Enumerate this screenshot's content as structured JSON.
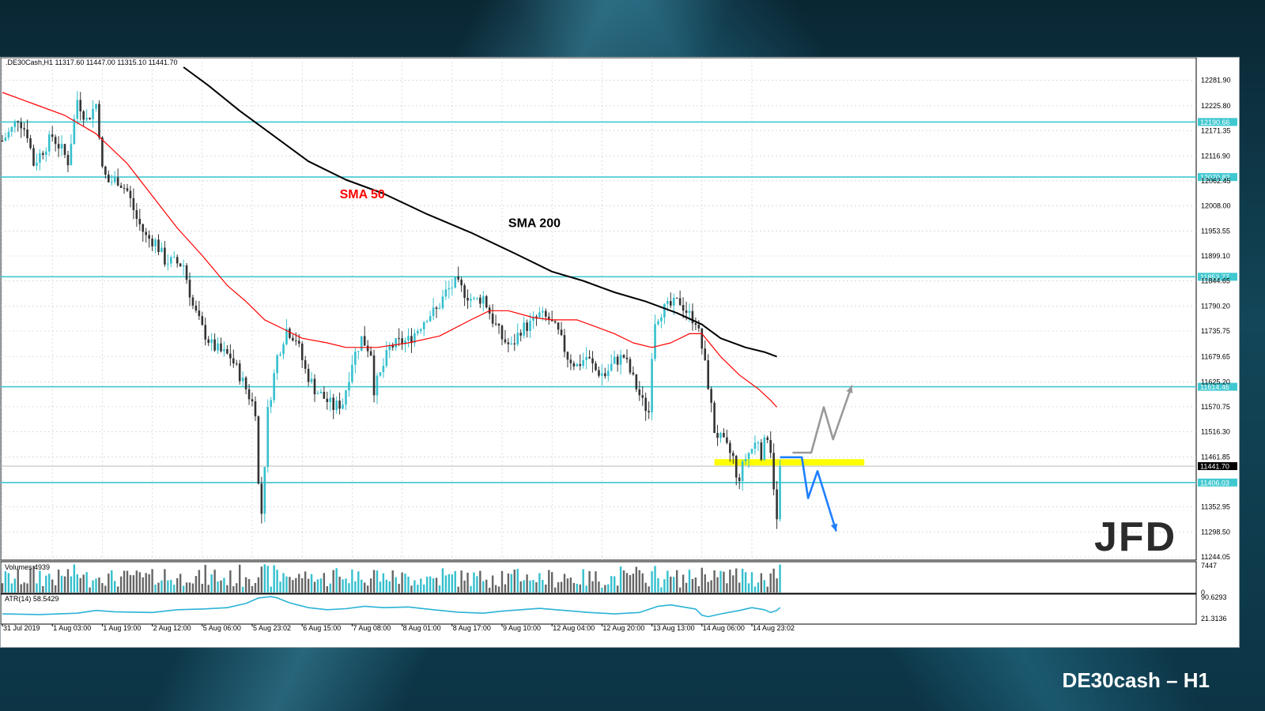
{
  "page": {
    "footer_title": "DE30cash – H1",
    "logo_text": "JFD",
    "symbol_info": ".DE30Cash,H1  11317.60 11447.00 11315.10 11441.70"
  },
  "colors": {
    "sma50": "#ff0000",
    "sma200": "#000000",
    "level_line": "#40c8d0",
    "bull_candle": "#35c0ce",
    "bear_candle": "#333333",
    "highlight": "#ffff00",
    "arrow_down": "#1e7fff",
    "arrow_up": "#999999",
    "atr_line": "#2bb3d6",
    "volume_bar_up": "#35c0ce",
    "volume_bar_down": "#666666"
  },
  "chart_data": {
    "type": "candlestick",
    "title": "",
    "instrument": "DE30cash",
    "timeframe": "H1",
    "price_axis": {
      "ylim": [
        11244.05,
        12310
      ],
      "tick_labels": [
        "12281.90",
        "12225.80",
        "12171.35",
        "12116.90",
        "12062.45",
        "12008.00",
        "11953.55",
        "11899.10",
        "11844.65",
        "11790.20",
        "11735.75",
        "11679.65",
        "11625.20",
        "11570.75",
        "11516.30",
        "11461.85",
        "11352.95",
        "11298.50",
        "11244.05"
      ],
      "tick_values": [
        12281.9,
        12225.8,
        12171.35,
        12116.9,
        12062.45,
        12008.0,
        11953.55,
        11899.1,
        11844.65,
        11790.2,
        11735.75,
        11679.65,
        11625.2,
        11570.75,
        11516.3,
        11461.85,
        11352.95,
        11298.5,
        11244.05
      ]
    },
    "time_axis": {
      "labels": [
        "31 Jul 2019",
        "1 Aug 03:00",
        "1 Aug 19:00",
        "2 Aug 12:00",
        "5 Aug 06:00",
        "5 Aug 23:02",
        "6 Aug 15:00",
        "7 Aug 08:00",
        "8 Aug 01:00",
        "8 Aug 17:00",
        "9 Aug 10:00",
        "12 Aug 04:00",
        "12 Aug 20:00",
        "13 Aug 13:00",
        "14 Aug 06:00",
        "14 Aug 23:02"
      ],
      "label_index": [
        0,
        16,
        32,
        48,
        64,
        80,
        96,
        112,
        128,
        144,
        160,
        176,
        192,
        208,
        224,
        240
      ]
    },
    "levels": [
      {
        "value": 12190.66,
        "label": "12190.66"
      },
      {
        "value": 12070.83,
        "label": "12070.83"
      },
      {
        "value": 11853.77,
        "label": "11853.77"
      },
      {
        "value": 11614.46,
        "label": "11614.46"
      },
      {
        "value": 11406.03,
        "label": "11406.03"
      }
    ],
    "current_price": {
      "value": 11441.7,
      "label": "11441.70"
    },
    "highlight_zone": {
      "value": 11450,
      "from_index": 228,
      "to_index": 276
    },
    "annotations": [
      {
        "text": "SMA 50",
        "index": 108,
        "price": 12025,
        "color": "#ff0000"
      },
      {
        "text": "SMA 200",
        "index": 162,
        "price": 11962,
        "color": "#000000"
      }
    ],
    "close_path": [
      [
        0,
        12150
      ],
      [
        3,
        12175
      ],
      [
        5,
        12200
      ],
      [
        8,
        12165
      ],
      [
        10,
        12100
      ],
      [
        13,
        12130
      ],
      [
        16,
        12160
      ],
      [
        19,
        12130
      ],
      [
        21,
        12105
      ],
      [
        24,
        12240
      ],
      [
        27,
        12195
      ],
      [
        30,
        12230
      ],
      [
        31,
        12170
      ],
      [
        32,
        12085
      ],
      [
        34,
        12060
      ],
      [
        37,
        12065
      ],
      [
        40,
        12040
      ],
      [
        43,
        11980
      ],
      [
        46,
        11940
      ],
      [
        49,
        11930
      ],
      [
        52,
        11890
      ],
      [
        55,
        11885
      ],
      [
        58,
        11880
      ],
      [
        61,
        11790
      ],
      [
        64,
        11740
      ],
      [
        67,
        11705
      ],
      [
        70,
        11690
      ],
      [
        73,
        11680
      ],
      [
        76,
        11640
      ],
      [
        79,
        11595
      ],
      [
        81,
        11565
      ],
      [
        82,
        11400
      ],
      [
        83,
        11340
      ],
      [
        85,
        11560
      ],
      [
        88,
        11680
      ],
      [
        91,
        11740
      ],
      [
        94,
        11720
      ],
      [
        97,
        11650
      ],
      [
        100,
        11610
      ],
      [
        103,
        11590
      ],
      [
        106,
        11570
      ],
      [
        109,
        11580
      ],
      [
        112,
        11670
      ],
      [
        115,
        11720
      ],
      [
        118,
        11690
      ],
      [
        119,
        11610
      ],
      [
        121,
        11640
      ],
      [
        124,
        11700
      ],
      [
        127,
        11710
      ],
      [
        130,
        11715
      ],
      [
        133,
        11740
      ],
      [
        136,
        11770
      ],
      [
        139,
        11780
      ],
      [
        142,
        11820
      ],
      [
        145,
        11840
      ],
      [
        148,
        11820
      ],
      [
        151,
        11800
      ],
      [
        154,
        11810
      ],
      [
        157,
        11760
      ],
      [
        160,
        11720
      ],
      [
        163,
        11700
      ],
      [
        166,
        11740
      ],
      [
        169,
        11750
      ],
      [
        172,
        11770
      ],
      [
        175,
        11760
      ],
      [
        178,
        11730
      ],
      [
        181,
        11680
      ],
      [
        184,
        11660
      ],
      [
        187,
        11680
      ],
      [
        190,
        11650
      ],
      [
        193,
        11640
      ],
      [
        196,
        11670
      ],
      [
        199,
        11680
      ],
      [
        202,
        11630
      ],
      [
        205,
        11580
      ],
      [
        207,
        11560
      ],
      [
        208,
        11690
      ],
      [
        209,
        11760
      ],
      [
        211,
        11780
      ],
      [
        214,
        11790
      ],
      [
        217,
        11800
      ],
      [
        220,
        11770
      ],
      [
        222,
        11760
      ],
      [
        224,
        11700
      ],
      [
        226,
        11620
      ],
      [
        228,
        11520
      ],
      [
        230,
        11500
      ],
      [
        232,
        11480
      ],
      [
        234,
        11460
      ],
      [
        235,
        11410
      ],
      [
        236,
        11420
      ],
      [
        238,
        11460
      ],
      [
        240,
        11480
      ],
      [
        242,
        11500
      ],
      [
        243,
        11470
      ],
      [
        244,
        11490
      ],
      [
        245,
        11510
      ],
      [
        246,
        11480
      ],
      [
        247,
        11400
      ],
      [
        248,
        11320
      ],
      [
        249,
        11441.7
      ]
    ],
    "sma50_path": [
      [
        0,
        12255
      ],
      [
        10,
        12230
      ],
      [
        20,
        12205
      ],
      [
        30,
        12165
      ],
      [
        40,
        12100
      ],
      [
        48,
        12030
      ],
      [
        56,
        11960
      ],
      [
        64,
        11900
      ],
      [
        72,
        11835
      ],
      [
        78,
        11800
      ],
      [
        84,
        11760
      ],
      [
        90,
        11740
      ],
      [
        96,
        11720
      ],
      [
        104,
        11710
      ],
      [
        110,
        11700
      ],
      [
        120,
        11700
      ],
      [
        130,
        11710
      ],
      [
        140,
        11725
      ],
      [
        150,
        11760
      ],
      [
        156,
        11780
      ],
      [
        162,
        11780
      ],
      [
        170,
        11765
      ],
      [
        176,
        11760
      ],
      [
        184,
        11760
      ],
      [
        190,
        11745
      ],
      [
        196,
        11730
      ],
      [
        202,
        11710
      ],
      [
        208,
        11700
      ],
      [
        214,
        11710
      ],
      [
        220,
        11730
      ],
      [
        224,
        11730
      ],
      [
        230,
        11680
      ],
      [
        236,
        11640
      ],
      [
        242,
        11610
      ],
      [
        246,
        11585
      ],
      [
        248,
        11570
      ]
    ],
    "sma200_path": [
      [
        58,
        12310
      ],
      [
        66,
        12270
      ],
      [
        76,
        12215
      ],
      [
        86,
        12165
      ],
      [
        98,
        12105
      ],
      [
        110,
        12065
      ],
      [
        122,
        12035
      ],
      [
        136,
        11990
      ],
      [
        150,
        11950
      ],
      [
        164,
        11905
      ],
      [
        176,
        11865
      ],
      [
        186,
        11845
      ],
      [
        196,
        11820
      ],
      [
        206,
        11800
      ],
      [
        216,
        11775
      ],
      [
        224,
        11750
      ],
      [
        230,
        11720
      ],
      [
        238,
        11700
      ],
      [
        244,
        11690
      ],
      [
        248,
        11680
      ]
    ],
    "projection_down": [
      [
        249,
        11461
      ],
      [
        256,
        11461
      ],
      [
        258,
        11372
      ],
      [
        261,
        11431
      ],
      [
        267,
        11300
      ]
    ],
    "projection_up": [
      [
        253,
        11471
      ],
      [
        259,
        11471
      ],
      [
        263,
        11570
      ],
      [
        266,
        11500
      ],
      [
        272,
        11617
      ]
    ],
    "volume": {
      "label": "Volumes 4939",
      "tick_labels": [
        "7447",
        "0"
      ],
      "max": 7447
    },
    "atr": {
      "label": "ATR(14) 58.5429",
      "tick_labels": [
        "90.6293",
        "21.3136"
      ],
      "ylim": [
        15,
        95
      ],
      "path": [
        [
          0,
          40
        ],
        [
          12,
          38
        ],
        [
          24,
          42
        ],
        [
          30,
          50
        ],
        [
          36,
          46
        ],
        [
          48,
          44
        ],
        [
          56,
          52
        ],
        [
          64,
          54
        ],
        [
          72,
          58
        ],
        [
          78,
          70
        ],
        [
          82,
          86
        ],
        [
          86,
          90
        ],
        [
          88,
          86
        ],
        [
          92,
          72
        ],
        [
          98,
          58
        ],
        [
          104,
          52
        ],
        [
          110,
          55
        ],
        [
          116,
          62
        ],
        [
          122,
          58
        ],
        [
          130,
          60
        ],
        [
          138,
          52
        ],
        [
          146,
          45
        ],
        [
          154,
          42
        ],
        [
          160,
          48
        ],
        [
          166,
          52
        ],
        [
          172,
          56
        ],
        [
          180,
          50
        ],
        [
          188,
          44
        ],
        [
          196,
          40
        ],
        [
          204,
          44
        ],
        [
          210,
          62
        ],
        [
          214,
          66
        ],
        [
          218,
          60
        ],
        [
          222,
          54
        ],
        [
          224,
          36
        ],
        [
          226,
          32
        ],
        [
          230,
          40
        ],
        [
          236,
          50
        ],
        [
          240,
          58
        ],
        [
          244,
          52
        ],
        [
          246,
          44
        ],
        [
          248,
          50
        ],
        [
          249,
          58.5
        ]
      ]
    }
  }
}
